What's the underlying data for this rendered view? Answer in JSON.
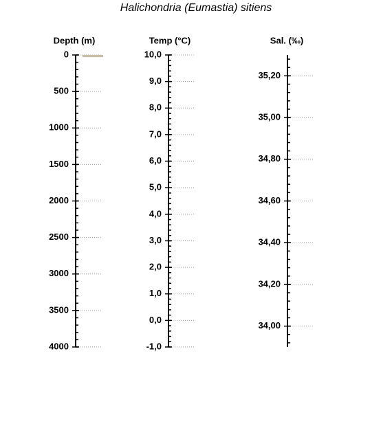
{
  "title": "Halichondria (Eumastia) sitiens",
  "chart_data": [
    {
      "type": "depth",
      "label": "Depth (m)",
      "ylim": [
        4000,
        0
      ],
      "yticks": [
        0,
        500,
        1000,
        1500,
        2000,
        2500,
        3000,
        3500,
        4000
      ],
      "values": [
        0,
        30
      ],
      "color": "#c8bfa8",
      "grid": true
    },
    {
      "type": "axis",
      "label": "Temp (°C)",
      "ylim": [
        -1,
        10
      ],
      "yticks": [
        {
          "value": -1,
          "label": "-1,0"
        },
        {
          "value": 0,
          "label": "0,0"
        },
        {
          "value": 1,
          "label": "1,0"
        },
        {
          "value": 2,
          "label": "2,0"
        },
        {
          "value": 3,
          "label": "3,0"
        },
        {
          "value": 4,
          "label": "4,0"
        },
        {
          "value": 5,
          "label": "5,0"
        },
        {
          "value": 6,
          "label": "6,0"
        },
        {
          "value": 7,
          "label": "7,0"
        },
        {
          "value": 8,
          "label": "8,0"
        },
        {
          "value": 9,
          "label": "9,0"
        },
        {
          "value": 10,
          "label": "10,0"
        }
      ],
      "grid": true
    },
    {
      "type": "axis",
      "label": "Sal. (‰)",
      "ylim": [
        33.9,
        35.3
      ],
      "yticks": [
        {
          "value": 34.0,
          "label": "34,00"
        },
        {
          "value": 34.2,
          "label": "34,20"
        },
        {
          "value": 34.4,
          "label": "34,40"
        },
        {
          "value": 34.6,
          "label": "34,60"
        },
        {
          "value": 34.8,
          "label": "34,80"
        },
        {
          "value": 35.0,
          "label": "35,00"
        },
        {
          "value": 35.2,
          "label": "35,20"
        }
      ],
      "grid": true
    }
  ]
}
